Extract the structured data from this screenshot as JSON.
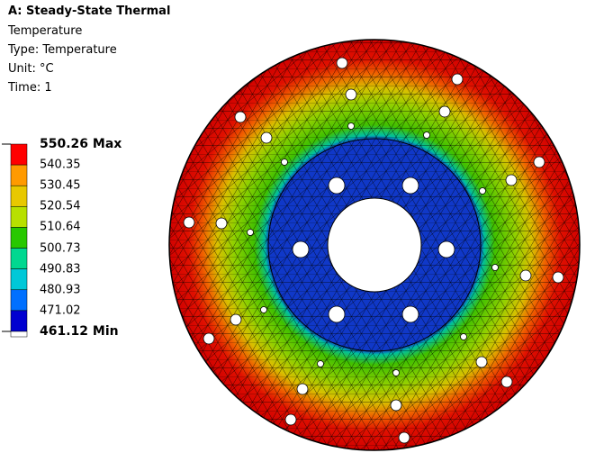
{
  "header": {
    "title": "A: Steady-State Thermal",
    "lines": [
      "Temperature",
      "Type: Temperature",
      "Unit: °C",
      "Time: 1"
    ]
  },
  "legend": {
    "labels": [
      "550.26 Max",
      "540.35",
      "530.45",
      "520.54",
      "510.64",
      "500.73",
      "490.83",
      "480.93",
      "471.02",
      "461.12 Min"
    ],
    "colors": [
      "#ff0000",
      "#ff9a00",
      "#e8c800",
      "#b8e000",
      "#28c800",
      "#00d890",
      "#00c8d8",
      "#0070ff",
      "#0000d0"
    ]
  }
}
